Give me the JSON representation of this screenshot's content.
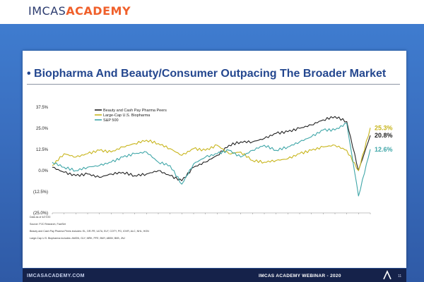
{
  "header": {
    "brand_part1": "IMCAS",
    "brand_part2": "ACADEMY"
  },
  "slide": {
    "title": "• Biopharma And Beauty/Consumer Outpacing The Broader Market",
    "notes": [
      "Data as of 4/27/20",
      "Source: PJC Research, FactSet",
      "Beauty and Cash Pay Pharma Peers includes: EL, DR-FR, ULTA, ELF, COTY, PG, IOVR, ALC, NHL, HON",
      "Large-Cap U.S. Biopharma includes: AMGN, GLY, MRK, PFE, BMY, ABBV, BIIB, JNJ"
    ]
  },
  "chart_data": {
    "type": "line",
    "x": [
      "Jan-18",
      "Feb-18",
      "Mar-18",
      "Apr-18",
      "May-18",
      "Jun-18",
      "Jul-18",
      "Aug-18",
      "Sep-18",
      "Oct-18",
      "Nov-18",
      "Dec-18",
      "Jan-19",
      "Feb-19",
      "Mar-19",
      "Apr-19",
      "May-19",
      "Jun-19",
      "Jul-19",
      "Aug-19",
      "Sep-19",
      "Oct-19",
      "Nov-19",
      "Dec-19",
      "Jan-20",
      "Feb-20",
      "Mar-20",
      "Apr-20"
    ],
    "y_tick_labels": [
      "37.5%",
      "25.0%",
      "12.5%",
      "0.0%",
      "(12.5%)",
      "(25.0%)"
    ],
    "y_ticks": [
      37.5,
      25,
      12.5,
      0,
      -12.5,
      -25
    ],
    "ylim": [
      -25,
      37.5
    ],
    "series": [
      {
        "name": "Beauty and Cash Pay Pharma Peers",
        "color": "#222222",
        "values": [
          2,
          -1,
          -3,
          -2,
          -4,
          -2,
          -1,
          -3,
          -2,
          0,
          -3,
          -6,
          2,
          5,
          9,
          15,
          17,
          17,
          19,
          22,
          23,
          25,
          27,
          30,
          32,
          29,
          0,
          20.8
        ],
        "end_label": "20.8%"
      },
      {
        "name": "Large-Cap U.S. Biopharma",
        "color": "#c8b51c",
        "values": [
          3,
          10,
          8,
          10,
          12,
          11,
          14,
          16,
          18,
          16,
          13,
          9,
          13,
          12,
          15,
          10,
          11,
          6,
          5,
          6,
          7,
          10,
          12,
          14,
          15,
          12,
          0,
          25.3
        ],
        "end_label": "25.3%"
      },
      {
        "name": "S&P 500",
        "color": "#3fa6a8",
        "values": [
          5,
          2,
          0,
          2,
          3,
          5,
          8,
          10,
          11,
          5,
          3,
          -8,
          4,
          8,
          10,
          12,
          8,
          12,
          15,
          12,
          14,
          17,
          20,
          24,
          24,
          28,
          -15,
          12.6
        ],
        "end_label": "12.6%"
      }
    ],
    "legend_placement": "top-left",
    "grid": false
  },
  "footer": {
    "left": "IMCASACADEMY.COM",
    "right": "IMCAS ACADEMY WEBINAR - 2020",
    "page": "11"
  },
  "colors": {
    "title": "#24478f",
    "brand_accent": "#f0602b",
    "band": "#15224a"
  }
}
